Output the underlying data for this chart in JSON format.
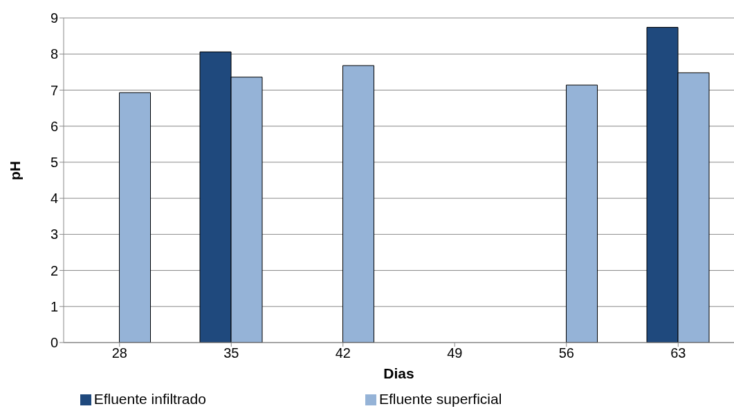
{
  "chart_data": {
    "type": "bar",
    "xlabel": "Dias",
    "ylabel": "pH",
    "categories": [
      "28",
      "35",
      "42",
      "49",
      "56",
      "63"
    ],
    "series": [
      {
        "name": "Efluente infiltrado",
        "color": "#1f497d",
        "values": [
          null,
          8.06,
          null,
          null,
          null,
          8.74
        ]
      },
      {
        "name": "Efluente superficial",
        "color": "#95b3d7",
        "values": [
          6.93,
          7.36,
          7.68,
          null,
          7.14,
          7.48
        ]
      }
    ],
    "ylim": [
      0,
      9
    ],
    "yticks": [
      0,
      1,
      2,
      3,
      4,
      5,
      6,
      7,
      8,
      9
    ],
    "grid": "y",
    "legend": "bottom"
  }
}
